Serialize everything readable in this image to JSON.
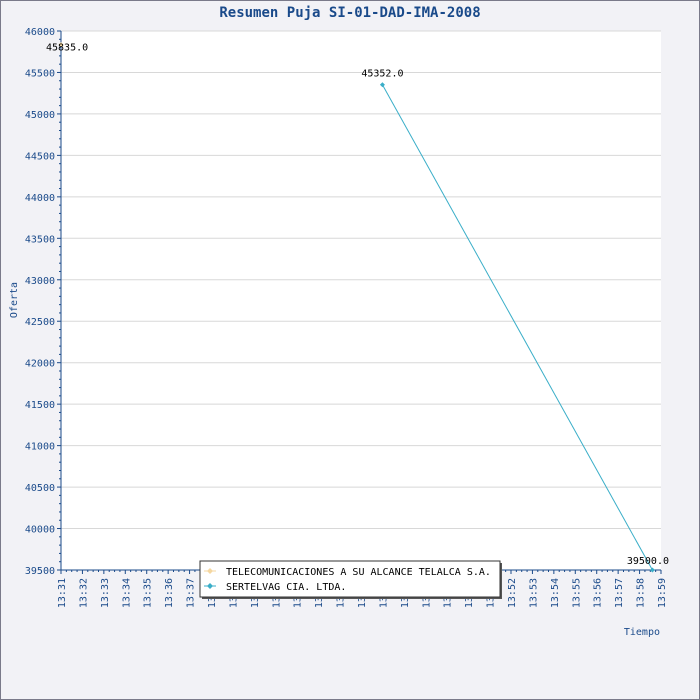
{
  "chart_data": {
    "type": "line",
    "title": "Resumen Puja SI-01-DAD-IMA-2008",
    "xlabel": "Tiempo",
    "ylabel": "Oferta",
    "ylim": [
      39500,
      46000
    ],
    "yticks": [
      39500,
      40000,
      40500,
      41000,
      41500,
      42000,
      42500,
      43000,
      43500,
      44000,
      44500,
      45000,
      45500,
      46000
    ],
    "xlim": [
      "13:31",
      "13:59"
    ],
    "xticks": [
      "13:31",
      "13:32",
      "13:33",
      "13:34",
      "13:35",
      "13:36",
      "13:37",
      "13:38",
      "13:39",
      "13:40",
      "13:41",
      "13:42",
      "13:43",
      "13:44",
      "13:45",
      "13:46",
      "13:47",
      "13:48",
      "13:49",
      "13:50",
      "13:51",
      "13:52",
      "13:53",
      "13:54",
      "13:55",
      "13:56",
      "13:57",
      "13:58",
      "13:59"
    ],
    "grid": true,
    "legend_position": "bottom-center",
    "series": [
      {
        "name": "TELECOMUNICACIONES A SU ALCANCE TELALCA S.A.",
        "color": "#f5d7a0",
        "marker": "diamond",
        "points": [
          {
            "x": "13:31",
            "y": 45835.0,
            "label": "45835.0"
          }
        ]
      },
      {
        "name": "SERTELVAG CIA. LTDA.",
        "color": "#3aaec8",
        "marker": "diamond",
        "points": [
          {
            "x": "13:46",
            "y": 45352.0,
            "label": "45352.0"
          },
          {
            "x": "13:58.6",
            "y": 39500.0,
            "label": "39500.0"
          }
        ]
      }
    ]
  }
}
